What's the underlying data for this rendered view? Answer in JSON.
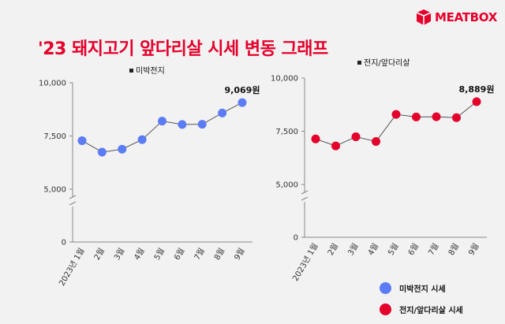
{
  "brand": {
    "logo_text": "MEATBOX",
    "logo_icon": "box-logo-icon",
    "color": "#e4002b"
  },
  "title": "'23 돼지고기 앞다리살 시세 변동 그래프",
  "chart_data": [
    {
      "type": "line",
      "categories": [
        "2023년 1월",
        "2월",
        "3월",
        "4월",
        "5월",
        "6월",
        "7월",
        "8월",
        "9월"
      ],
      "series": [
        {
          "name": "미박전지",
          "values": [
            7280,
            6740,
            6880,
            7330,
            8200,
            8040,
            8050,
            8580,
            9069
          ]
        }
      ],
      "ylim": [
        0,
        10000
      ],
      "yticks": [
        0,
        5000,
        7500,
        10000
      ],
      "ytick_labels": [
        "0",
        "5,000",
        "7,500",
        "10,000"
      ],
      "annotation": "9,069원",
      "legend_label": "미박전지",
      "color": "#5b7cf5",
      "grid": false,
      "axis_break": true
    },
    {
      "type": "line",
      "categories": [
        "2023년 1월",
        "2월",
        "3월",
        "4월",
        "5월",
        "6월",
        "7월",
        "8월",
        "9월"
      ],
      "series": [
        {
          "name": "전지/앞다리살",
          "values": [
            7140,
            6810,
            7240,
            7020,
            8290,
            8170,
            8180,
            8140,
            8889
          ]
        }
      ],
      "ylim": [
        0,
        10000
      ],
      "yticks": [
        0,
        5000,
        7500,
        10000
      ],
      "ytick_labels": [
        "0",
        "5,000",
        "7,500",
        "10,000"
      ],
      "annotation": "8,889원",
      "legend_label": "전지/앞다리살",
      "color": "#e4002b",
      "grid": false,
      "axis_break": true
    }
  ],
  "legend": [
    {
      "label": "미박전지 시세",
      "color": "#5b7cf5"
    },
    {
      "label": "전지/앞다리살 시세",
      "color": "#e4002b"
    }
  ]
}
